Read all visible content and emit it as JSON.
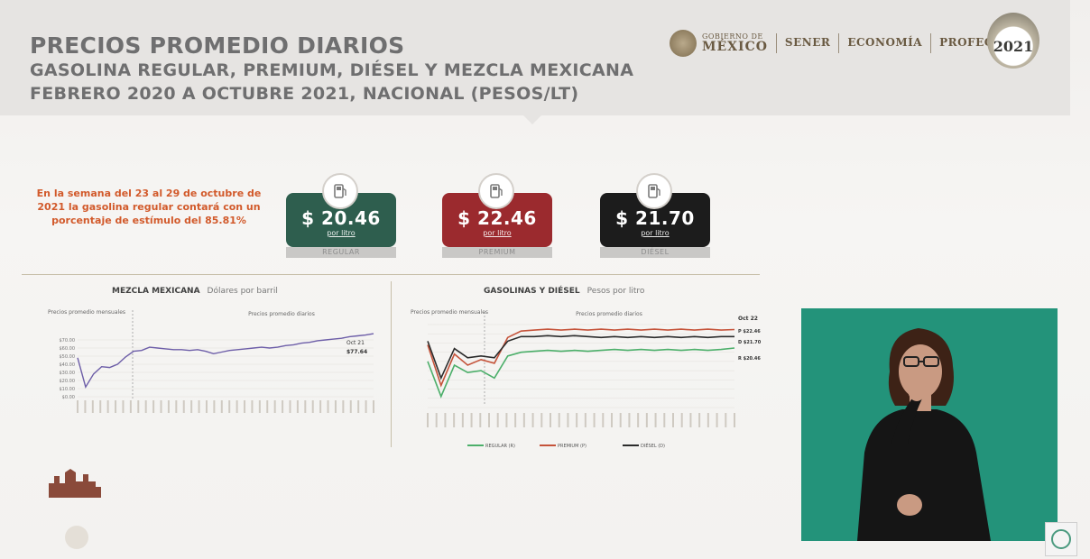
{
  "header": {
    "title_line1": "PRECIOS PROMEDIO DIARIOS",
    "title_line2": "GASOLINA REGULAR, PREMIUM, DIÉSEL Y MEZCLA MEXICANA",
    "title_line3": "FEBRERO 2020 A OCTUBRE 2021, NACIONAL (PESOS/LT)",
    "logos": {
      "gobierno_small": "GOBIERNO DE",
      "gobierno_big": "MÉXICO",
      "sener": "SENER",
      "economia": "ECONOMÍA",
      "profeco": "PROFECO"
    },
    "emblem_year": "2021"
  },
  "callout": "En la semana del 23 al 29 de octubre de 2021 la gasolina regular contará con un porcentaje de estímulo del 85.81%",
  "cards": [
    {
      "price": "$ 20.46",
      "unit": "por litro",
      "label": "REGULAR",
      "color": "#2e5e4e"
    },
    {
      "price": "$ 22.46",
      "unit": "por litro",
      "label": "PREMIUM",
      "color": "#9b2a2e"
    },
    {
      "price": "$ 21.70",
      "unit": "por litro",
      "label": "DIÉSEL",
      "color": "#1c1c1c"
    }
  ],
  "left_chart": {
    "title": "MEZCLA MEXICANA",
    "units": "Dólares por barril",
    "note_left": "Precios promedio mensuales",
    "note_right": "Precios promedio diarios",
    "end_label_date": "Oct 21",
    "end_label_value": "$77.64"
  },
  "right_chart": {
    "title": "GASOLINAS Y DIÉSEL",
    "units": "Pesos por litro",
    "note_left": "Precios promedio mensuales",
    "note_right": "Precios promedio diarios",
    "end_date": "Oct 22",
    "legend": [
      "REGULAR (R)",
      "PREMIUM (P)",
      "DIÉSEL (D)"
    ],
    "end_values": [
      "P $22.46",
      "D $21.70",
      "R $20.46"
    ]
  },
  "chart_data": [
    {
      "type": "line",
      "title": "MEZCLA MEXICANA",
      "ylabel": "Dólares por barril",
      "y_ticks": [
        "$70.00",
        "$60.00",
        "$50.00",
        "$40.00",
        "$30.00",
        "$20.00",
        "$10.00",
        "$0.00"
      ],
      "ylim": [
        0,
        80
      ],
      "series": [
        {
          "color": "#6d5ea8",
          "values": [
            48,
            12,
            28,
            37,
            36,
            40,
            49,
            56,
            57,
            61,
            60,
            59,
            58,
            58,
            57,
            58,
            56,
            53,
            55,
            57,
            58,
            59,
            60,
            61,
            60,
            61,
            63,
            64,
            66,
            67,
            69,
            70,
            71,
            72,
            74,
            75,
            76,
            77.64
          ]
        }
      ]
    },
    {
      "type": "line",
      "title": "GASOLINAS Y DIÉSEL",
      "ylabel": "Pesos por litro",
      "ylim": [
        14,
        23
      ],
      "series": [
        {
          "name": "REGULAR (R)",
          "color": "#4caf6a",
          "values": [
            19.0,
            15.2,
            18.6,
            17.8,
            18.0,
            17.2,
            19.6,
            20.0,
            20.1,
            20.2,
            20.1,
            20.2,
            20.1,
            20.2,
            20.3,
            20.2,
            20.3,
            20.2,
            20.3,
            20.2,
            20.3,
            20.2,
            20.3,
            20.46
          ]
        },
        {
          "name": "PREMIUM (P)",
          "color": "#c5533a",
          "values": [
            20.8,
            16.4,
            19.8,
            18.6,
            19.2,
            18.8,
            21.6,
            22.3,
            22.4,
            22.5,
            22.4,
            22.5,
            22.4,
            22.5,
            22.4,
            22.5,
            22.4,
            22.5,
            22.4,
            22.5,
            22.4,
            22.5,
            22.4,
            22.46
          ]
        },
        {
          "name": "DIÉSEL (D)",
          "color": "#2b2b2b",
          "values": [
            21.2,
            17.2,
            20.4,
            19.4,
            19.6,
            19.4,
            21.2,
            21.7,
            21.7,
            21.8,
            21.7,
            21.8,
            21.7,
            21.6,
            21.7,
            21.6,
            21.7,
            21.6,
            21.7,
            21.6,
            21.7,
            21.6,
            21.7,
            21.7
          ]
        }
      ]
    }
  ]
}
